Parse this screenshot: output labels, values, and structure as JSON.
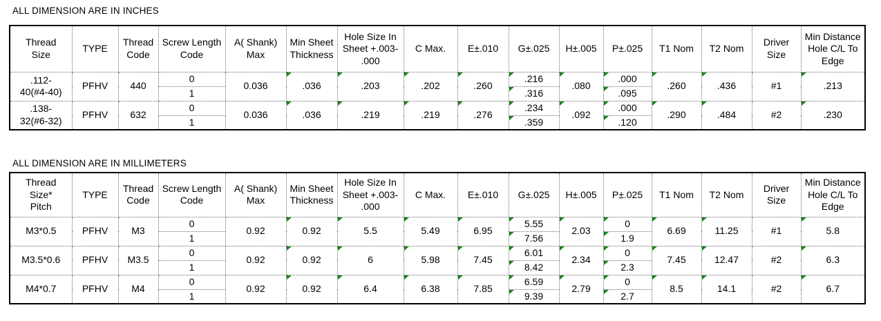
{
  "tables": [
    {
      "title": "ALL DIMENSION ARE IN INCHES",
      "headers": [
        "Thread\nSize",
        "TYPE",
        "Thread\nCode",
        "Screw Length\nCode",
        "A( Shank)\nMax",
        "Min Sheet\nThickness",
        "Hole Size In\nSheet +.003-\n.000",
        "C Max.",
        "E±.010",
        "G±.025",
        "H±.005",
        "P±.025",
        "T1  Nom",
        "T2 Nom",
        "Driver\nSize",
        "Min Distance\nHole C/L To\nEdge"
      ],
      "rows": [
        [
          ".112-\n40(#4-40)",
          "PFHV",
          "440",
          [
            "0",
            "1"
          ],
          "0.036",
          ".036",
          ".203",
          ".202",
          ".260",
          [
            ".216",
            ".316"
          ],
          ".080",
          [
            ".000",
            ".095"
          ],
          ".260",
          ".436",
          "#1",
          ".213"
        ],
        [
          ".138-\n32(#6-32)",
          "PFHV",
          "632",
          [
            "0",
            "1"
          ],
          "0.036",
          ".036",
          ".219",
          ".219",
          ".276",
          [
            ".234",
            ".359"
          ],
          ".092",
          [
            ".000",
            ".120"
          ],
          ".290",
          ".484",
          "#2",
          ".230"
        ]
      ]
    },
    {
      "title": "ALL DIMENSION ARE IN MILLIMETERS",
      "headers": [
        "Thread\nSize*\nPitch",
        "TYPE",
        "Thread\nCode",
        "Screw Length\nCode",
        "A( Shank)\nMax",
        "Min Sheet\nThickness",
        "Hole Size In\nSheet +.003-\n.000",
        "C Max.",
        "E±.010",
        "G±.025",
        "H±.005",
        "P±.025",
        "T1  Nom",
        "T2 Nom",
        "Driver\nSize",
        "Min Distance\nHole C/L To\nEdge"
      ],
      "rows": [
        [
          "M3*0.5",
          "PFHV",
          "M3",
          [
            "0",
            "1"
          ],
          "0.92",
          "0.92",
          "5.5",
          "5.49",
          "6.95",
          [
            "5.55",
            "7.56"
          ],
          "2.03",
          [
            "0",
            "1.9"
          ],
          "6.69",
          "11.25",
          "#1",
          "5.8"
        ],
        [
          "M3.5*0.6",
          "PFHV",
          "M3.5",
          [
            "0",
            "1"
          ],
          "0.92",
          "0.92",
          "6",
          "5.98",
          "7.45",
          [
            "6.01",
            "8.42"
          ],
          "2.34",
          [
            "0",
            "2.3"
          ],
          "7.45",
          "12.47",
          "#2",
          "6.3"
        ],
        [
          "M4*0.7",
          "PFHV",
          "M4",
          [
            "0",
            "1"
          ],
          "0.92",
          "0.92",
          "6.4",
          "6.38",
          "7.85",
          [
            "6.59",
            "9.39"
          ],
          "2.79",
          [
            "0",
            "2.7"
          ],
          "8.5",
          "14.1",
          "#2",
          "6.7"
        ]
      ]
    }
  ],
  "column_keys": [
    "thread-size",
    "type",
    "thread-code",
    "screw-length-code",
    "a-shank-max",
    "min-sheet-thickness",
    "hole-size-in-sheet",
    "c-max",
    "e",
    "g",
    "h",
    "p",
    "t1-nom",
    "t2-nom",
    "driver-size",
    "min-distance-hole-cl-to-edge"
  ],
  "flagged_column_keys": [
    "min-sheet-thickness",
    "hole-size-in-sheet",
    "c-max",
    "e",
    "g",
    "h",
    "p",
    "t1-nom",
    "t2-nom",
    "min-distance-hole-cl-to-edge"
  ],
  "icons": {
    "error_flag": {
      "name": "error-flag-icon",
      "color": "#178217"
    }
  },
  "colors": {
    "background": "#ffffff",
    "text": "#000000",
    "outer_border": "#000000",
    "inner_border": "#6b6b6b",
    "flag_green": "#178217"
  }
}
